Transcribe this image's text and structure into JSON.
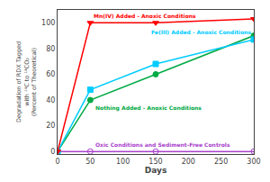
{
  "chart_data": {
    "type": "line",
    "xlabel": "Days",
    "ylabel": "Degradation of RDX Tagged\nwith ¹⁴C to ¹⁴CO₂\n(Percent of Theoretical)",
    "x": [
      0,
      50,
      150,
      300
    ],
    "series": [
      {
        "name": "Oxic Conditions and Sediment-Free Controls",
        "color": "#aa44cc",
        "marker": "circle-open",
        "values": [
          0,
          0,
          0,
          0
        ]
      },
      {
        "name": "Nothing Added - Anoxic Conditions",
        "color": "#00aa44",
        "marker": "circle",
        "values": [
          0,
          40,
          60,
          90
        ]
      },
      {
        "name": "Fe(III) Added - Anoxic Conditions",
        "color": "#00ccff",
        "marker": "square",
        "values": [
          0,
          48,
          68,
          87
        ]
      },
      {
        "name": "Mn(IV) Added - Anoxic Conditions",
        "color": "#ff0000",
        "marker": "triangle-down",
        "values": [
          0,
          100,
          100,
          103
        ]
      }
    ],
    "xlim": [
      0,
      300
    ],
    "ylim": [
      -2,
      110
    ],
    "xticks": [
      0,
      50,
      100,
      150,
      200,
      250,
      300
    ],
    "yticks": [
      0,
      20,
      40,
      60,
      80,
      100
    ],
    "grid": false
  }
}
